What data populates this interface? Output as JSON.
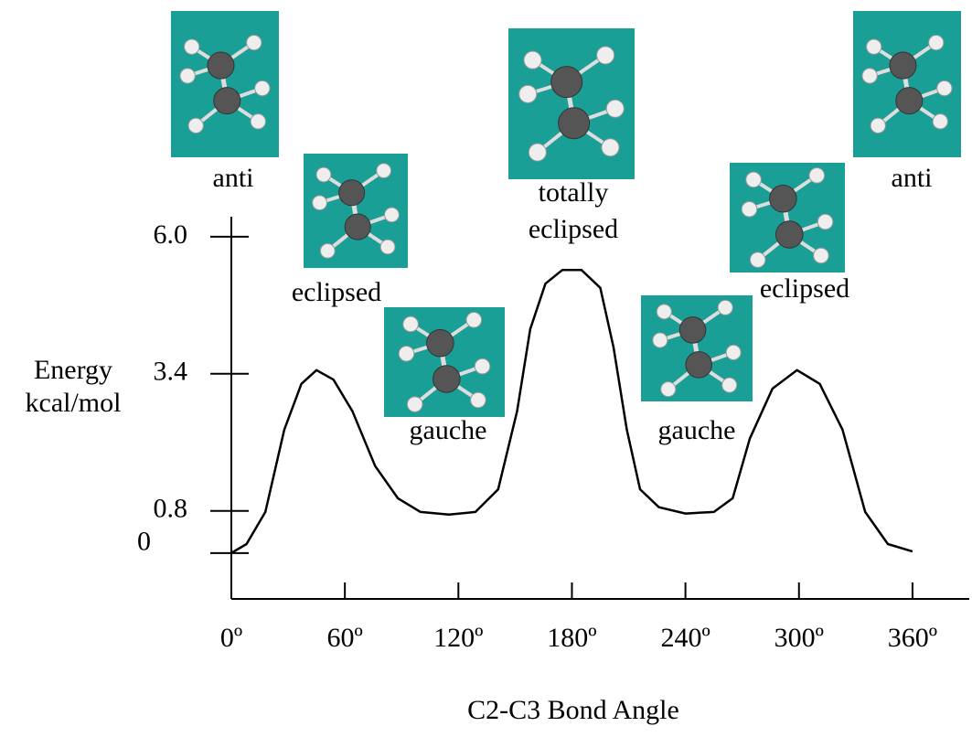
{
  "chart_data": {
    "type": "line",
    "ylabel": [
      "Energy",
      "kcal/mol"
    ],
    "xlabel": "C2-C3 Bond Angle",
    "x": [
      0,
      8,
      18,
      28,
      37,
      45,
      54,
      64,
      76,
      88,
      100,
      115,
      129,
      141,
      151,
      158,
      166,
      175,
      185,
      195,
      202,
      209,
      216,
      226,
      240,
      255,
      265,
      274,
      286,
      299,
      311,
      323,
      335,
      347,
      360
    ],
    "values": [
      0,
      0.17,
      0.78,
      2.34,
      3.21,
      3.47,
      3.29,
      2.69,
      1.65,
      1.04,
      0.78,
      0.73,
      0.78,
      1.21,
      2.69,
      4.25,
      5.11,
      5.37,
      5.37,
      5.03,
      3.9,
      2.34,
      1.21,
      0.87,
      0.75,
      0.78,
      1.04,
      2.17,
      3.12,
      3.47,
      3.21,
      2.34,
      0.78,
      0.17,
      0.03
    ],
    "color": "#000000",
    "xlim": [
      0,
      390
    ],
    "ylim": [
      -0.87,
      6.38
    ],
    "xticks": [
      {
        "value": 0,
        "label": "0º"
      },
      {
        "value": 60,
        "label": "60º"
      },
      {
        "value": 120,
        "label": "120º"
      },
      {
        "value": 180,
        "label": "180º"
      },
      {
        "value": 240,
        "label": "240º"
      },
      {
        "value": 300,
        "label": "300º"
      },
      {
        "value": 360,
        "label": "360º"
      }
    ],
    "yticks": [
      0,
      0.8,
      3.4,
      {
        "value": 6,
        "label": "6.0"
      }
    ],
    "annotations": [
      [
        "anti"
      ],
      [
        "eclipsed"
      ],
      [
        "gauche"
      ],
      [
        "totally",
        "eclipsed"
      ],
      [
        "gauche"
      ],
      [
        "eclipsed"
      ],
      [
        "anti"
      ]
    ]
  }
}
